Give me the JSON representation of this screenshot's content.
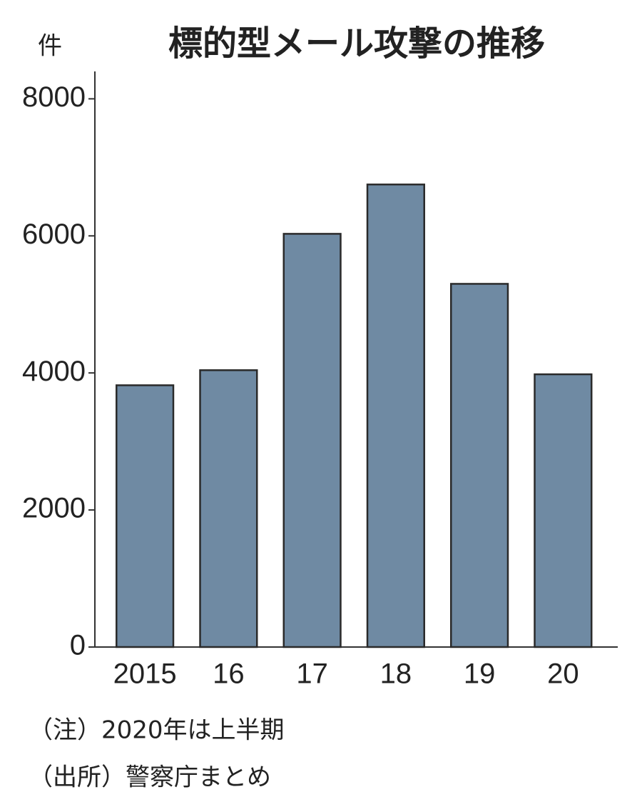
{
  "chart_data": {
    "type": "bar",
    "title": "標的型メール攻撃の推移",
    "y_label": "件",
    "categories": [
      "2015",
      "16",
      "17",
      "18",
      "19",
      "20"
    ],
    "values": [
      3820,
      4040,
      6030,
      6750,
      5300,
      3980
    ],
    "color": "#6f8aa3",
    "ylim": [
      0,
      8400
    ],
    "yticks": [
      0,
      2000,
      4000,
      6000,
      8000
    ],
    "grid": false,
    "notes": [
      "（注）2020年は上半期",
      "（出所）警察庁まとめ"
    ]
  }
}
